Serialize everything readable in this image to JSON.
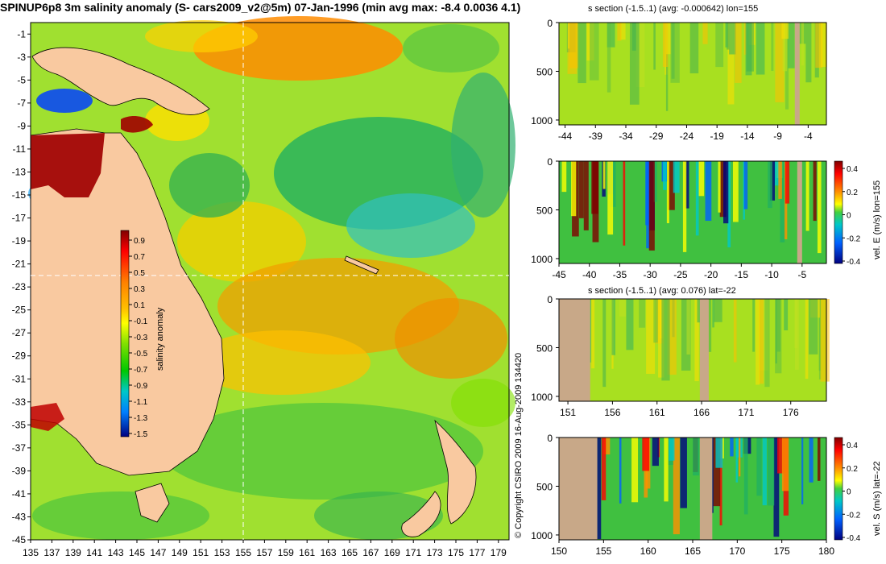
{
  "header": {
    "title": "SPINUP6p8 3m salinity anomaly (S- cars2009_v2@5m) 07-Jan-1996 (min avg max: -8.4 0.0036 4.1)"
  },
  "copyright": "© Copyright CSIRO 2009   16-Aug-2009 134420",
  "colors": {
    "land": "#f9c9a0",
    "section_land": "#c8a888",
    "crosshair": "#ffffff",
    "ramp": [
      "#000080",
      "#0000ff",
      "#0080ff",
      "#00c8c8",
      "#00c800",
      "#80e000",
      "#ffff00",
      "#ffc000",
      "#ff8000",
      "#ff0000",
      "#800000"
    ]
  },
  "chart_data": [
    {
      "id": "map",
      "type": "heatmap",
      "title": "",
      "x_ticks": [
        135,
        137,
        139,
        141,
        143,
        145,
        147,
        149,
        151,
        153,
        155,
        157,
        159,
        161,
        163,
        165,
        167,
        169,
        171,
        173,
        175,
        177,
        179
      ],
      "y_ticks": [
        -1,
        -3,
        -5,
        -7,
        -9,
        -11,
        -13,
        -15,
        -17,
        -19,
        -21,
        -23,
        -25,
        -27,
        -29,
        -31,
        -33,
        -35,
        -37,
        -39,
        -41,
        -43,
        -45
      ],
      "xlim": [
        135,
        180
      ],
      "ylim": [
        -45,
        0
      ],
      "crosshair": {
        "lon": 155,
        "lat": -22
      },
      "colorbar": {
        "label": "salinity anomaly",
        "ticks": [
          "0.9",
          "0.7",
          "0.5",
          "0.3",
          "0.1",
          "-0.1",
          "-0.3",
          "-0.5",
          "-0.7",
          "-0.9",
          "-1.1",
          "-1.3",
          "-1.5"
        ],
        "range": [
          -1.6,
          1.0
        ]
      }
    },
    {
      "id": "s-section-lon",
      "type": "heatmap",
      "title": "s section (-1.5..1) (avg: -0.000642) lon=155",
      "x_ticks": [
        "-44",
        "-39",
        "-34",
        "-29",
        "-24",
        "-19",
        "-14",
        "-9",
        "-4"
      ],
      "y_ticks": [
        "0",
        "500",
        "1000"
      ],
      "xlim": [
        -45,
        -1
      ],
      "ylim": [
        1050,
        0
      ]
    },
    {
      "id": "vel-e-section",
      "type": "heatmap",
      "title": "",
      "x_ticks": [
        "-45",
        "-40",
        "-35",
        "-30",
        "-25",
        "-20",
        "-15",
        "-10",
        "-5"
      ],
      "y_ticks": [
        "0",
        "500",
        "1000"
      ],
      "xlim": [
        -45,
        -1
      ],
      "ylim": [
        1050,
        0
      ],
      "colorbar": {
        "label": "vel. E (m/s) lon=155",
        "ticks": [
          "0.4",
          "0.2",
          "0",
          "-0.2",
          "-0.4"
        ],
        "range": [
          -0.45,
          0.45
        ]
      }
    },
    {
      "id": "s-section-lat",
      "type": "heatmap",
      "title": "s section (-1.5..1) (avg: 0.076) lat=-22",
      "x_ticks": [
        "151",
        "156",
        "161",
        "166",
        "171",
        "176"
      ],
      "y_ticks": [
        "0",
        "500",
        "1000"
      ],
      "xlim": [
        150,
        180
      ],
      "ylim": [
        1050,
        0
      ]
    },
    {
      "id": "vel-s-section",
      "type": "heatmap",
      "title": "",
      "x_ticks": [
        "150",
        "155",
        "160",
        "165",
        "170",
        "175",
        "180"
      ],
      "y_ticks": [
        "0",
        "500",
        "1000"
      ],
      "xlim": [
        150,
        180
      ],
      "ylim": [
        1050,
        0
      ],
      "colorbar": {
        "label": "vel. S (m/s) lat=-22",
        "ticks": [
          "0.4",
          "0.2",
          "0",
          "-0.2",
          "-0.4"
        ],
        "range": [
          -0.45,
          0.45
        ]
      }
    }
  ]
}
